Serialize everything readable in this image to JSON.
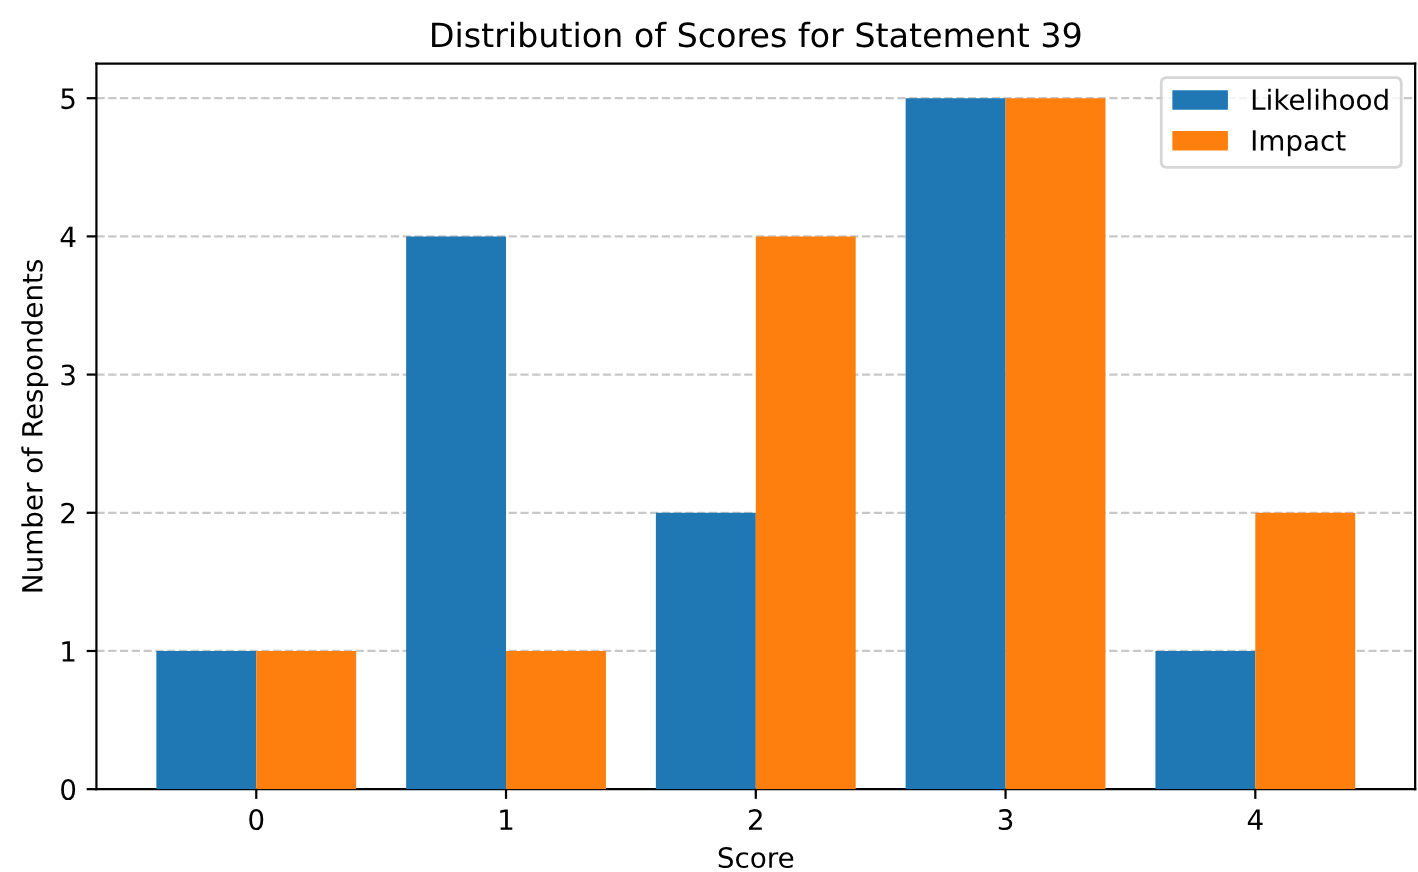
{
  "chart_data": {
    "type": "bar",
    "title": "Distribution of Scores for Statement 39",
    "xlabel": "Score",
    "ylabel": "Number of Respondents",
    "categories": [
      "0",
      "1",
      "2",
      "3",
      "4"
    ],
    "series": [
      {
        "name": "Likelihood",
        "color": "#1f77b4",
        "values": [
          1,
          4,
          2,
          5,
          1
        ]
      },
      {
        "name": "Impact",
        "color": "#ff7f0e",
        "values": [
          1,
          1,
          4,
          5,
          2
        ]
      }
    ],
    "ylim": [
      0,
      5.25
    ],
    "yticks": [
      0,
      1,
      2,
      3,
      4,
      5
    ],
    "grid": "y",
    "legend": "top right"
  }
}
